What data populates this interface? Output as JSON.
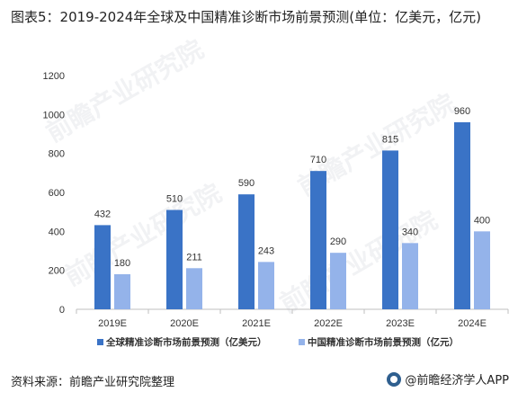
{
  "title": "图表5：2019-2024年全球及中国精准诊断市场前景预测(单位：亿美元，亿元)",
  "watermark_text": "前瞻产业研究院",
  "footer": {
    "source": "资料来源：前瞻产业研究院整理",
    "brand": "@前瞻经济学人APP"
  },
  "colors": {
    "global": "#3a73c6",
    "china": "#94b3ea",
    "axis": "#bfbfbf",
    "text": "#333333"
  },
  "chart_data": {
    "type": "bar",
    "categories": [
      "2019E",
      "2020E",
      "2021E",
      "2022E",
      "2023E",
      "2024E"
    ],
    "series": [
      {
        "name": "全球精准诊断市场前景预测（亿美元）",
        "values": [
          432,
          510,
          590,
          710,
          815,
          960
        ]
      },
      {
        "name": "中国精准诊断市场前景预测（亿元）",
        "values": [
          180,
          211,
          243,
          290,
          340,
          400
        ]
      }
    ],
    "ylim": [
      0,
      1200
    ],
    "yticks": [
      0,
      200,
      400,
      600,
      800,
      1000,
      1200
    ],
    "grid": false,
    "legend": "bottom"
  }
}
